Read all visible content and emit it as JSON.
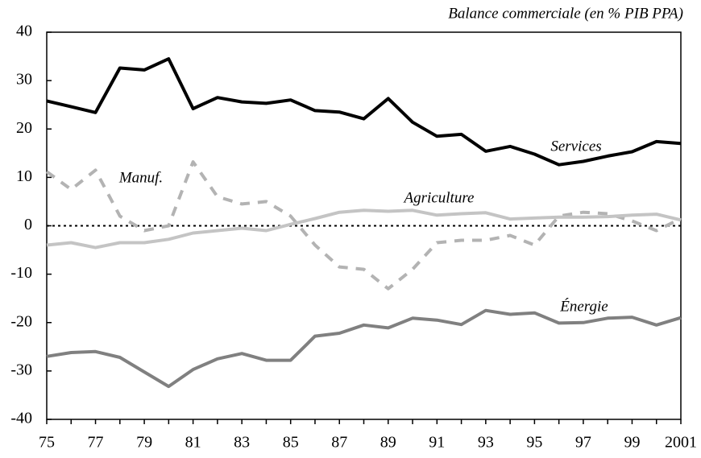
{
  "chart_data": {
    "type": "line",
    "title": "Balance commerciale (en % PIB PPA)",
    "categories": [
      "75",
      null,
      "77",
      null,
      "79",
      null,
      "81",
      null,
      "83",
      null,
      "85",
      null,
      "87",
      null,
      "89",
      null,
      "91",
      null,
      "93",
      null,
      "95",
      null,
      "97",
      null,
      "99",
      null,
      "2001"
    ],
    "series": [
      {
        "name": "Services",
        "color": "#000000",
        "dashed": false,
        "values": [
          25.8,
          24.6,
          23.4,
          32.6,
          32.2,
          34.5,
          24.2,
          26.5,
          25.6,
          25.3,
          26.0,
          23.8,
          23.5,
          22.1,
          26.3,
          21.4,
          18.5,
          18.9,
          15.4,
          16.4,
          14.8,
          12.6,
          13.3,
          14.4,
          15.3,
          17.4,
          17.0
        ]
      },
      {
        "name": "Manuf.",
        "color": "#b3b3b3",
        "dashed": true,
        "values": [
          11.2,
          7.5,
          11.5,
          2,
          -1,
          0,
          13.2,
          6,
          4.5,
          5,
          2,
          -4,
          -8.5,
          -9,
          -13,
          -9,
          -3.5,
          -3,
          -3,
          -2,
          -4,
          2,
          2.8,
          2.5,
          1,
          -1,
          1.5
        ]
      },
      {
        "name": "Agriculture",
        "color": "#c4c4c4",
        "dashed": false,
        "values": [
          -4,
          -3.5,
          -4.5,
          -3.5,
          -3.5,
          -2.8,
          -1.5,
          -1,
          -0.5,
          -1,
          0.3,
          1.5,
          2.8,
          3.2,
          3,
          3.2,
          2.2,
          2.5,
          2.7,
          1.4,
          1.6,
          1.8,
          1.8,
          1.9,
          2.2,
          2.4,
          1.2
        ]
      },
      {
        "name": "Énergie",
        "color": "#808080",
        "dashed": false,
        "values": [
          -27,
          -26.2,
          -26,
          -27.2,
          -30.2,
          -33.2,
          -29.7,
          -27.5,
          -26.4,
          -27.8,
          -27.8,
          -22.8,
          -22.2,
          -20.5,
          -21.1,
          -19.1,
          -19.5,
          -20.4,
          -17.5,
          -18.3,
          -18,
          -20.1,
          -20,
          -19.1,
          -18.9,
          -20.5,
          -19
        ]
      }
    ],
    "ylim": [
      -40,
      40
    ],
    "yticks": [
      -40,
      -30,
      -20,
      -10,
      0,
      10,
      20,
      30,
      40
    ],
    "hline": 0,
    "grid": false
  }
}
